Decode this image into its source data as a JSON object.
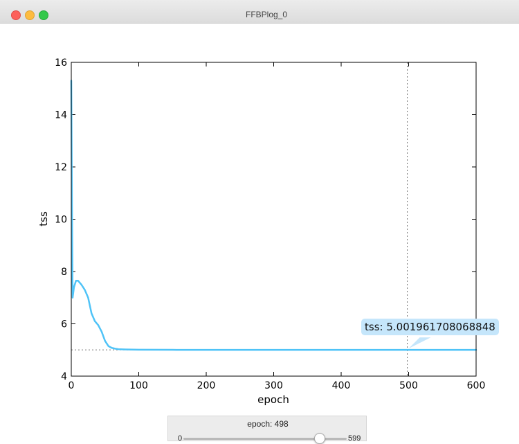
{
  "window": {
    "title": "FFBPlog_0"
  },
  "chart_data": {
    "type": "line",
    "xlabel": "epoch",
    "ylabel": "tss",
    "xlim": [
      0,
      600
    ],
    "ylim": [
      4,
      16
    ],
    "xticks": [
      "0",
      "100",
      "200",
      "300",
      "400",
      "500",
      "600"
    ],
    "yticks": [
      "4",
      "6",
      "8",
      "10",
      "12",
      "14",
      "16"
    ],
    "series": [
      {
        "color": "#4fc3f7",
        "x": [
          0,
          1,
          2,
          4,
          7,
          10,
          15,
          20,
          25,
          30,
          35,
          40,
          45,
          50,
          55,
          60,
          65,
          70,
          80,
          100,
          150,
          200,
          300,
          400,
          500,
          600
        ],
        "y": [
          15.3,
          10.5,
          7.0,
          7.4,
          7.65,
          7.65,
          7.5,
          7.3,
          7.0,
          6.4,
          6.1,
          5.95,
          5.7,
          5.35,
          5.15,
          5.08,
          5.05,
          5.03,
          5.02,
          5.01,
          5.005,
          5.003,
          5.002,
          5.002,
          5.00196,
          5.0019
        ]
      }
    ],
    "crosshair": {
      "x": 498,
      "y": 5.001961708068848
    },
    "tooltip_text": "tss: 5.001961708068848",
    "grid": false
  },
  "slider": {
    "label": "epoch: 498",
    "min_label": "0",
    "max_label": "599",
    "min": 0,
    "max": 599,
    "value": 498
  }
}
